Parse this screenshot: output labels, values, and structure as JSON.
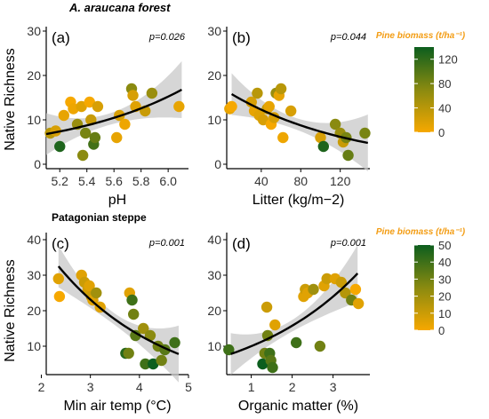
{
  "sections": [
    {
      "title": "A. araucana forest"
    },
    {
      "title": "Patagonian steppe"
    }
  ],
  "legends": [
    {
      "title": "Pine biomass (t/ha⁻¹)",
      "ticks": [
        "120",
        "80",
        "40",
        "0"
      ],
      "range": [
        0,
        140
      ],
      "colors": {
        "low": "#f6a800",
        "mid": "#8a8a10",
        "high": "#0c5e1e"
      }
    },
    {
      "title": "Pine biomass (t/ha⁻¹)",
      "ticks": [
        "50",
        "40",
        "30",
        "20",
        "10",
        "0"
      ],
      "range": [
        0,
        50
      ],
      "colors": {
        "low": "#f6a800",
        "mid": "#8a8a10",
        "high": "#0c5e1e"
      }
    }
  ],
  "chart_data": [
    {
      "type": "scatter",
      "panel": "(a)",
      "pvalue": "p=0.026",
      "xlabel": "pH",
      "ylabel": "Native Richness",
      "xlim": [
        5.1,
        6.15
      ],
      "ylim": [
        -1,
        31
      ],
      "xticks": [
        "5.2",
        "5.4",
        "5.6",
        "5.8",
        "6.0"
      ],
      "yticks": [
        "0",
        "10",
        "20",
        "30"
      ],
      "fit": {
        "x": [
          5.1,
          6.1
        ],
        "y": [
          6.8,
          16.8
        ],
        "band": true
      },
      "points": [
        {
          "x": 5.13,
          "y": 7,
          "c": 40
        },
        {
          "x": 5.17,
          "y": 7.5,
          "c": 20
        },
        {
          "x": 5.2,
          "y": 4,
          "c": 130
        },
        {
          "x": 5.23,
          "y": 11,
          "c": 10
        },
        {
          "x": 5.28,
          "y": 14,
          "c": 0
        },
        {
          "x": 5.3,
          "y": 12.5,
          "c": 5
        },
        {
          "x": 5.33,
          "y": 9,
          "c": 60
        },
        {
          "x": 5.36,
          "y": 13,
          "c": 15
        },
        {
          "x": 5.37,
          "y": 2,
          "c": 70
        },
        {
          "x": 5.39,
          "y": 7,
          "c": 80
        },
        {
          "x": 5.42,
          "y": 14,
          "c": 0
        },
        {
          "x": 5.43,
          "y": 10,
          "c": 30
        },
        {
          "x": 5.45,
          "y": 4.5,
          "c": 110
        },
        {
          "x": 5.46,
          "y": 6,
          "c": 90
        },
        {
          "x": 5.48,
          "y": 13,
          "c": 20
        },
        {
          "x": 5.62,
          "y": 6,
          "c": 10
        },
        {
          "x": 5.64,
          "y": 11,
          "c": 20
        },
        {
          "x": 5.68,
          "y": 9,
          "c": 5
        },
        {
          "x": 5.73,
          "y": 17,
          "c": 70
        },
        {
          "x": 5.74,
          "y": 15.5,
          "c": 20
        },
        {
          "x": 5.76,
          "y": 13,
          "c": 15
        },
        {
          "x": 5.83,
          "y": 12,
          "c": 30
        },
        {
          "x": 5.88,
          "y": 16,
          "c": 60
        },
        {
          "x": 6.08,
          "y": 13,
          "c": 10
        }
      ]
    },
    {
      "type": "scatter",
      "panel": "(b)",
      "pvalue": "p=0.044",
      "xlabel": "Litter (kg/m−2)",
      "ylabel": "",
      "xlim": [
        5,
        150
      ],
      "ylim": [
        -1,
        31
      ],
      "xticks": [
        "40",
        "80",
        "120"
      ],
      "yticks": [
        "0",
        "10",
        "20",
        "30"
      ],
      "fit": {
        "x": [
          10,
          148
        ],
        "y": [
          15.8,
          4.8
        ],
        "band": true
      },
      "points": [
        {
          "x": 8,
          "y": 12.5,
          "c": 10
        },
        {
          "x": 10,
          "y": 13,
          "c": 0
        },
        {
          "x": 30,
          "y": 14,
          "c": 20
        },
        {
          "x": 33,
          "y": 12,
          "c": 10
        },
        {
          "x": 36,
          "y": 16,
          "c": 40
        },
        {
          "x": 38,
          "y": 11,
          "c": 15
        },
        {
          "x": 42,
          "y": 10,
          "c": 20
        },
        {
          "x": 46,
          "y": 12.5,
          "c": 30
        },
        {
          "x": 48,
          "y": 13,
          "c": 10
        },
        {
          "x": 50,
          "y": 9,
          "c": 0
        },
        {
          "x": 53,
          "y": 10.5,
          "c": 20
        },
        {
          "x": 55,
          "y": 16,
          "c": 60
        },
        {
          "x": 58,
          "y": 15.5,
          "c": 10
        },
        {
          "x": 60,
          "y": 17,
          "c": 40
        },
        {
          "x": 62,
          "y": 6,
          "c": 5
        },
        {
          "x": 70,
          "y": 12,
          "c": 20
        },
        {
          "x": 100,
          "y": 6,
          "c": 20
        },
        {
          "x": 103,
          "y": 4,
          "c": 130
        },
        {
          "x": 115,
          "y": 9,
          "c": 70
        },
        {
          "x": 120,
          "y": 7,
          "c": 60
        },
        {
          "x": 123,
          "y": 5,
          "c": 30
        },
        {
          "x": 126,
          "y": 6,
          "c": 80
        },
        {
          "x": 128,
          "y": 2,
          "c": 90
        },
        {
          "x": 145,
          "y": 7,
          "c": 80
        }
      ]
    },
    {
      "type": "scatter",
      "panel": "(c)",
      "pvalue": "p=0.001",
      "xlabel": "Min air temp (°C)",
      "ylabel": "Native Richness",
      "xlim": [
        2.1,
        5.0
      ],
      "ylim": [
        2,
        42
      ],
      "xticks": [
        "2",
        "3",
        "4",
        "5"
      ],
      "yticks": [
        "10",
        "20",
        "30",
        "40"
      ],
      "fit": {
        "x": [
          2.35,
          4.8
        ],
        "y": [
          32.5,
          7.8
        ],
        "band": true
      },
      "points": [
        {
          "x": 2.35,
          "y": 29,
          "c": 5
        },
        {
          "x": 2.37,
          "y": 24,
          "c": 0
        },
        {
          "x": 2.82,
          "y": 30,
          "c": 5
        },
        {
          "x": 2.88,
          "y": 28,
          "c": 10
        },
        {
          "x": 2.95,
          "y": 26,
          "c": 8
        },
        {
          "x": 2.98,
          "y": 27,
          "c": 5
        },
        {
          "x": 3.02,
          "y": 24,
          "c": 10
        },
        {
          "x": 3.05,
          "y": 23,
          "c": 5
        },
        {
          "x": 3.12,
          "y": 25,
          "c": 20
        },
        {
          "x": 3.2,
          "y": 21,
          "c": 5
        },
        {
          "x": 3.72,
          "y": 8,
          "c": 45
        },
        {
          "x": 3.78,
          "y": 8,
          "c": 30
        },
        {
          "x": 3.8,
          "y": 25,
          "c": 5
        },
        {
          "x": 3.85,
          "y": 23,
          "c": 40
        },
        {
          "x": 3.88,
          "y": 19,
          "c": 30
        },
        {
          "x": 3.92,
          "y": 13,
          "c": 35
        },
        {
          "x": 4.08,
          "y": 15,
          "c": 20
        },
        {
          "x": 4.12,
          "y": 5,
          "c": 40
        },
        {
          "x": 4.22,
          "y": 13,
          "c": 25
        },
        {
          "x": 4.28,
          "y": 5,
          "c": 50
        },
        {
          "x": 4.38,
          "y": 10,
          "c": 30
        },
        {
          "x": 4.45,
          "y": 6,
          "c": 30
        },
        {
          "x": 4.52,
          "y": 9,
          "c": 35
        },
        {
          "x": 4.72,
          "y": 11,
          "c": 40
        }
      ]
    },
    {
      "type": "scatter",
      "panel": "(d)",
      "pvalue": "p=0.001",
      "xlabel": "Organic matter (%)",
      "ylabel": "",
      "xlim": [
        0.4,
        3.9
      ],
      "ylim": [
        2,
        42
      ],
      "xticks": [
        "1",
        "2",
        "3"
      ],
      "yticks": [
        "10",
        "20",
        "30",
        "40"
      ],
      "fit": {
        "x": [
          0.5,
          3.6
        ],
        "y": [
          7.8,
          30.5
        ],
        "band": true
      },
      "points": [
        {
          "x": 0.45,
          "y": 9,
          "c": 40
        },
        {
          "x": 1.28,
          "y": 5,
          "c": 50
        },
        {
          "x": 1.33,
          "y": 8,
          "c": 30
        },
        {
          "x": 1.38,
          "y": 21,
          "c": 10
        },
        {
          "x": 1.4,
          "y": 13,
          "c": 30
        },
        {
          "x": 1.45,
          "y": 8,
          "c": 40
        },
        {
          "x": 1.48,
          "y": 6,
          "c": 35
        },
        {
          "x": 1.52,
          "y": 4,
          "c": 40
        },
        {
          "x": 1.58,
          "y": 16,
          "c": 5
        },
        {
          "x": 2.1,
          "y": 11,
          "c": 40
        },
        {
          "x": 2.28,
          "y": 24,
          "c": 5
        },
        {
          "x": 2.32,
          "y": 26,
          "c": 10
        },
        {
          "x": 2.38,
          "y": 25,
          "c": 5
        },
        {
          "x": 2.52,
          "y": 26,
          "c": 20
        },
        {
          "x": 2.68,
          "y": 10,
          "c": 30
        },
        {
          "x": 2.78,
          "y": 27,
          "c": 5
        },
        {
          "x": 2.85,
          "y": 29,
          "c": 10
        },
        {
          "x": 3.05,
          "y": 29,
          "c": 5
        },
        {
          "x": 3.2,
          "y": 28,
          "c": 10
        },
        {
          "x": 3.3,
          "y": 25,
          "c": 15
        },
        {
          "x": 3.45,
          "y": 23,
          "c": 30
        },
        {
          "x": 3.55,
          "y": 26,
          "c": 0
        },
        {
          "x": 3.62,
          "y": 22,
          "c": 5
        }
      ]
    }
  ]
}
